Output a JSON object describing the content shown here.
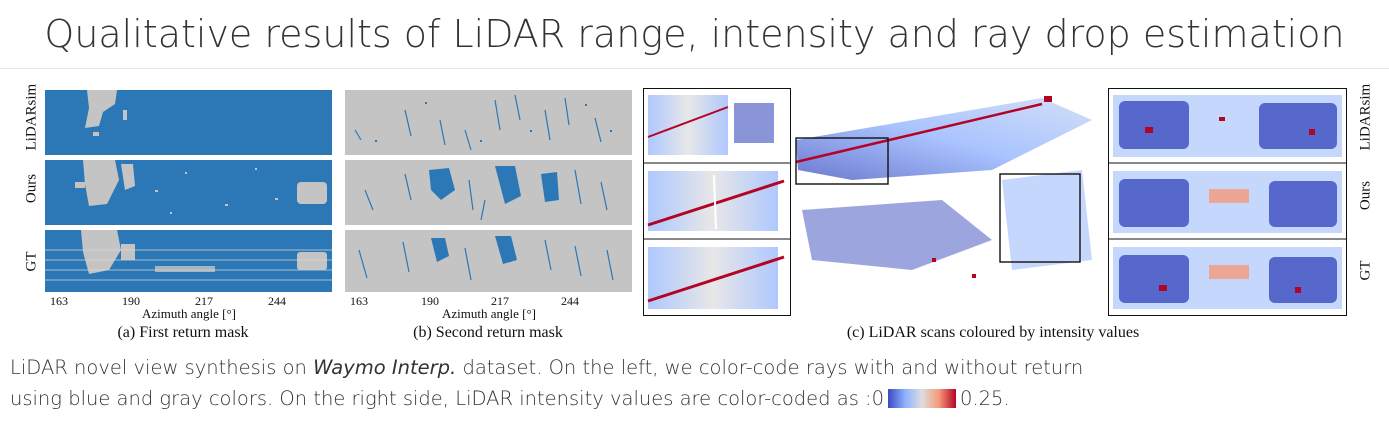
{
  "title": "Qualitative results of LiDAR range, intensity and ray drop estimation",
  "row_labels": [
    "LiDARsim",
    "Ours",
    "GT"
  ],
  "axis": {
    "ticks": [
      "163",
      "190",
      "217",
      "244"
    ],
    "label": "Azimuth angle [°]"
  },
  "subcaptions": {
    "a": "(a) First return mask",
    "b": "(b) Second return mask",
    "c": "(c) LiDAR scans coloured by intensity values"
  },
  "caption": {
    "line1_prefix": "LiDAR novel view synthesis on ",
    "dataset": "Waymo Interp.",
    "line1_suffix": " dataset. On the left, we color-code rays with and without return",
    "line2_prefix": "using blue and gray colors. On the right side, LiDAR intensity values are color-coded as :0",
    "line2_suffix": "0.25."
  },
  "colors": {
    "return": "#2c78b6",
    "no_return": "#c4c4c4",
    "intensity_low": "#3b4cc0",
    "intensity_high": "#b40426"
  }
}
